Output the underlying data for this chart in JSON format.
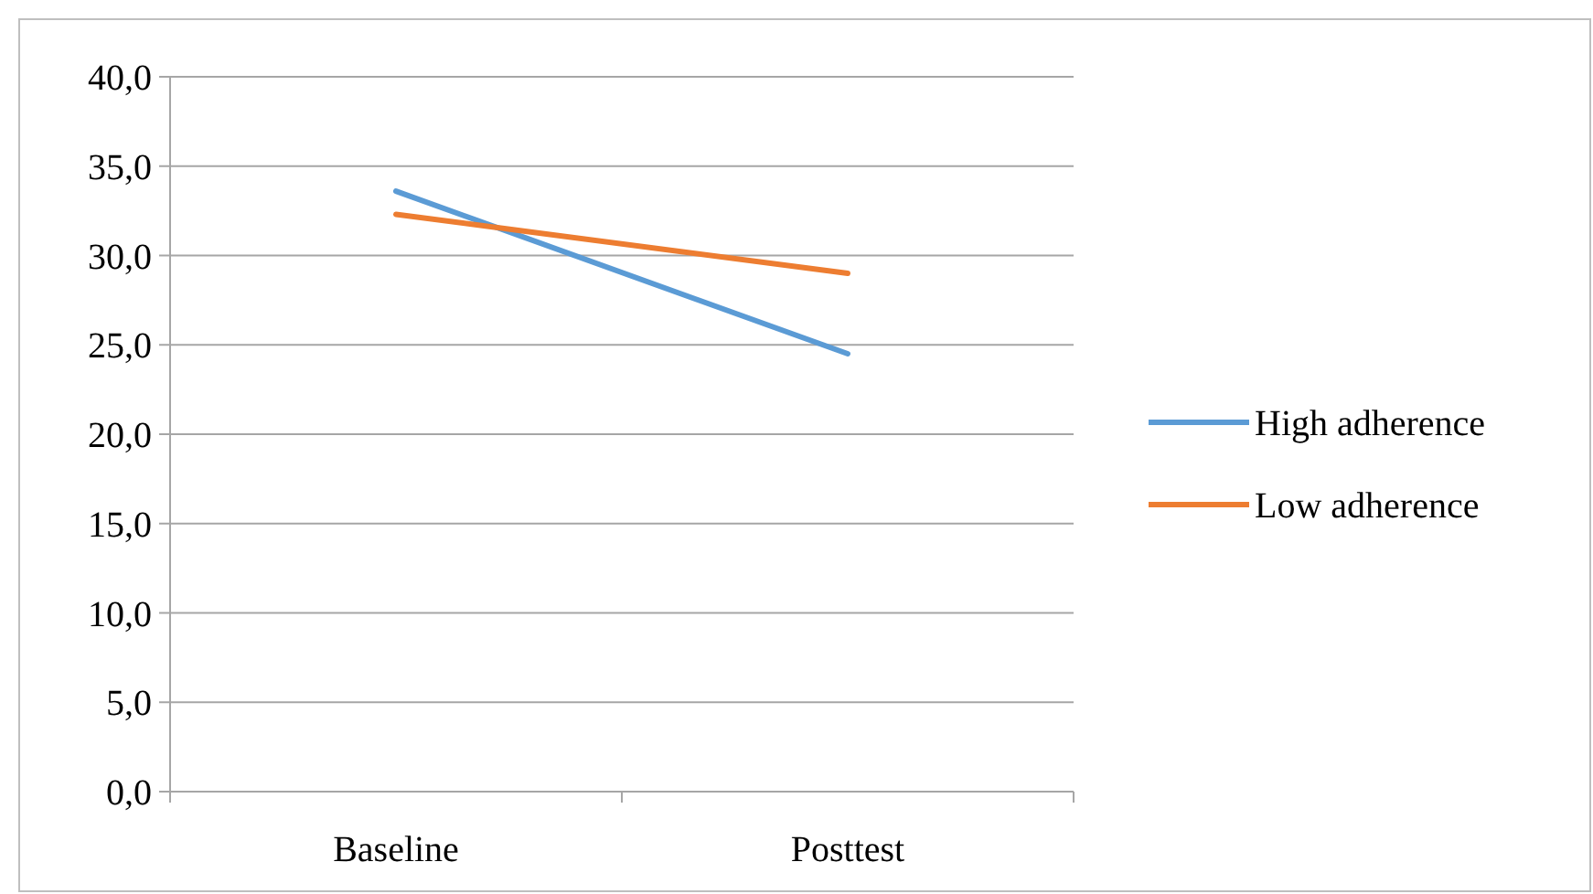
{
  "chart_data": {
    "type": "line",
    "categories": [
      "Baseline",
      "Posttest"
    ],
    "series": [
      {
        "name": "High adherence",
        "color": "#5b9bd5",
        "values": [
          33.6,
          24.5
        ]
      },
      {
        "name": "Low adherence",
        "color": "#ed7d31",
        "values": [
          32.3,
          29.0
        ]
      }
    ],
    "ylim": [
      0,
      40
    ],
    "yticks": [
      {
        "value": 0,
        "label": "0,0"
      },
      {
        "value": 5,
        "label": "5,0"
      },
      {
        "value": 10,
        "label": "10,0"
      },
      {
        "value": 15,
        "label": "15,0"
      },
      {
        "value": 20,
        "label": "20,0"
      },
      {
        "value": 25,
        "label": "25,0"
      },
      {
        "value": 30,
        "label": "30,0"
      },
      {
        "value": 35,
        "label": "35,0"
      },
      {
        "value": 40,
        "label": "40,0"
      }
    ],
    "grid": "y",
    "legend": "right",
    "marker": "none",
    "line_style": "solid"
  }
}
